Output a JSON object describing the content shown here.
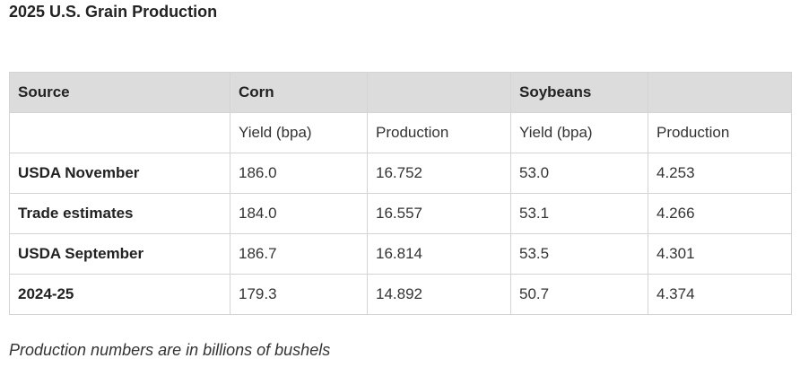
{
  "title": "2025 U.S. Grain Production",
  "table": {
    "header": {
      "source": "Source",
      "corn": "Corn",
      "soybeans": "Soybeans"
    },
    "subheader": [
      "Yield (bpa)",
      "Production",
      "Yield (bpa)",
      "Production"
    ],
    "rows": [
      [
        "USDA November",
        "186.0",
        "16.752",
        "53.0",
        "4.253"
      ],
      [
        "Trade estimates",
        "184.0",
        "16.557",
        "53.1",
        "4.266"
      ],
      [
        "USDA September",
        "186.7",
        "16.814",
        "53.5",
        "4.301"
      ],
      [
        "2024-25",
        "179.3",
        "14.892",
        "50.7",
        "4.374"
      ]
    ]
  },
  "footnote": "Production numbers are in billions of bushels"
}
